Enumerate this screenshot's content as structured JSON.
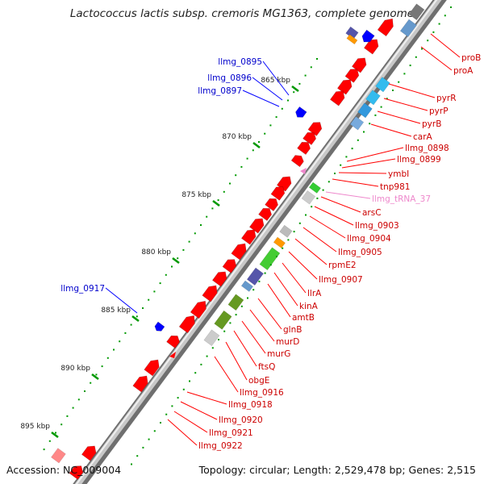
{
  "title": "Lactococcus lactis subsp. cremoris MG1363, complete genome",
  "footer": {
    "accession": "Accession: NC_009004",
    "summary": "Topology: circular; Length: 2,529,478 bp; Genes: 2,515"
  },
  "colors": {
    "forward_gene": "#ff0000",
    "reverse_gene": "#0000ff",
    "forward_label": "#cc0000",
    "reverse_label": "#0000cc",
    "trna_label": "#ee88cc",
    "ruler_tick": "#009900",
    "backbone": "#999999"
  },
  "ruler": [
    {
      "label": "865 kbp"
    },
    {
      "label": "870 kbp"
    },
    {
      "label": "875 kbp"
    },
    {
      "label": "880 kbp"
    },
    {
      "label": "885 kbp"
    },
    {
      "label": "890 kbp"
    },
    {
      "label": "895 kbp"
    }
  ],
  "reverse_labels": [
    {
      "name": "llmg_0895"
    },
    {
      "name": "llmg_0896"
    },
    {
      "name": "llmg_0897"
    },
    {
      "name": "llmg_0917"
    }
  ],
  "forward_labels": [
    {
      "name": "proB"
    },
    {
      "name": "proA"
    },
    {
      "name": "pyrR"
    },
    {
      "name": "pyrP"
    },
    {
      "name": "pyrB"
    },
    {
      "name": "carA"
    },
    {
      "name": "llmg_0898"
    },
    {
      "name": "llmg_0899"
    },
    {
      "name": "ymbI"
    },
    {
      "name": "tnp981"
    },
    {
      "name": "llmg_tRNA_37"
    },
    {
      "name": "arsC"
    },
    {
      "name": "llmg_0903"
    },
    {
      "name": "llmg_0904"
    },
    {
      "name": "llmg_0905"
    },
    {
      "name": "rpmE2"
    },
    {
      "name": "llmg_0907"
    },
    {
      "name": "llrA"
    },
    {
      "name": "kinA"
    },
    {
      "name": "amtB"
    },
    {
      "name": "glnB"
    },
    {
      "name": "murD"
    },
    {
      "name": "murG"
    },
    {
      "name": "ftsQ"
    },
    {
      "name": "obgE"
    },
    {
      "name": "llmg_0916"
    },
    {
      "name": "llmg_0918"
    },
    {
      "name": "llmg_0920"
    },
    {
      "name": "llmg_0921"
    },
    {
      "name": "llmg_0922"
    }
  ]
}
